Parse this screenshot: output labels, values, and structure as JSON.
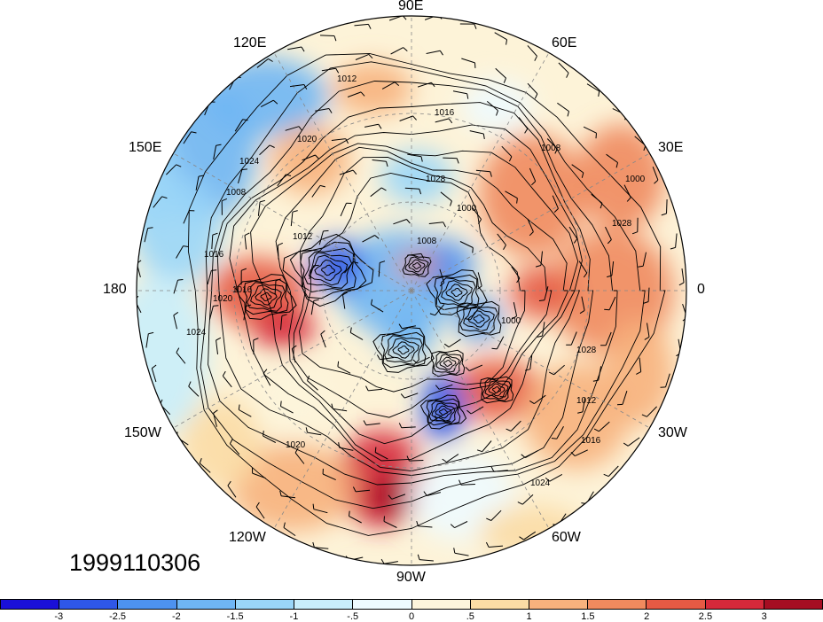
{
  "timestamp": "1999110306",
  "lon_labels": {
    "lon_90e": "90E",
    "lon_60e": "60E",
    "lon_30e": "30E",
    "lon_0": "0",
    "lon_30w": "30W",
    "lon_60w": "60W",
    "lon_90w": "90W",
    "lon_120w": "120W",
    "lon_150w": "150W",
    "lon_180": "180",
    "lon_150e": "150E",
    "lon_120e": "120E"
  },
  "contour_labels": [
    "1012",
    "1016",
    "1020",
    "1024",
    "1008",
    "1000",
    "1028"
  ],
  "colorbar": {
    "colors": [
      "#1a10d8",
      "#2f57e8",
      "#4d92ef",
      "#6fb6f4",
      "#9ad6f8",
      "#c9eefb",
      "#eefbff",
      "#fdf5dc",
      "#fbdca5",
      "#f7b17d",
      "#f08a5e",
      "#e65a44",
      "#d6293a",
      "#a50d22"
    ],
    "ticks": [
      "-3",
      "-2.5",
      "-2",
      "-1.5",
      "-1",
      "-.5",
      "0",
      ".5",
      "1",
      "1.5",
      "2",
      "2.5",
      "3"
    ]
  },
  "colors": {
    "contour": "#000000",
    "grid": "#888888",
    "land_line": "#333333"
  }
}
